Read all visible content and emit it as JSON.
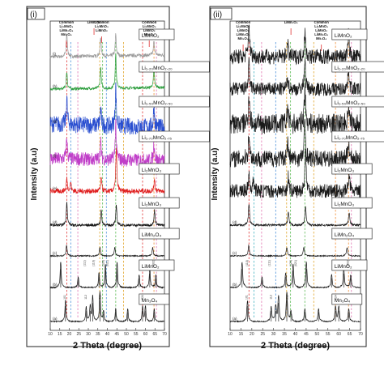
{
  "colors": {
    "black": "#1a1a1a",
    "gray": "#9a9a9a",
    "green": "#2e9e3e",
    "blue": "#2a4fd0",
    "magenta": "#c03ec8",
    "red": "#e02020",
    "guide_blue": "#4a90d9",
    "guide_green": "#55b84e",
    "guide_yellow": "#e0a020",
    "guide_orange": "#f08a30",
    "guide_pink": "#e070b0",
    "guide_red": "#e03030",
    "guide_cyan": "#40b0c0"
  },
  "chart_data": [
    {
      "type": "line",
      "panel_label": "(i)",
      "xlabel": "2 Theta (degree)",
      "ylabel": "Intensity (a.u)",
      "xlim": [
        10,
        70
      ],
      "x_ticks": [
        "10",
        "15",
        "20",
        "25",
        "30",
        "35",
        "40",
        "45",
        "50",
        "55",
        "60",
        "65",
        "70"
      ],
      "grid": false,
      "annotations": [
        {
          "text": [
            "Common",
            "Li₂MnO₃",
            "LiMn₂O₄",
            "Mn₃O₄"
          ],
          "x": 18.5
        },
        {
          "text": [
            "Common",
            "Li₂MnO₃",
            "LiMnO₂"
          ],
          "x": 37
        },
        {
          "text": [
            "LiMn₂O₄"
          ],
          "x": 33
        },
        {
          "text": [
            "Common",
            "Li₂MnO₃",
            "LiMnO₂",
            "Mn₃O₄"
          ],
          "x": 62
        }
      ],
      "series": [
        {
          "letter": "(i)",
          "label": "LiMnO₂",
          "color": "gray",
          "peaks": [
            [
              18.7,
              0.55
            ],
            [
              36.5,
              0.45
            ],
            [
              44.4,
              0.5
            ],
            [
              64.5,
              0.35
            ]
          ],
          "noise": 0.1,
          "slope": 0.05
        },
        {
          "letter": "(h)",
          "label": "Li₁.₂₀MnO₂.₂₀",
          "color": "green",
          "peaks": [
            [
              18.7,
              0.4
            ],
            [
              36.5,
              0.5
            ],
            [
              44.4,
              0.8
            ],
            [
              64.5,
              0.45
            ]
          ],
          "noise": 0.08,
          "slope": 0.05
        },
        {
          "letter": "(g)",
          "label": "Li₁.₅₀MnO₂.₅₀",
          "color": "blue",
          "peaks": [
            [
              18.7,
              0.6
            ],
            [
              36.5,
              0.4
            ],
            [
              44.4,
              0.95
            ],
            [
              64.5,
              0.5
            ]
          ],
          "noise": 0.5,
          "slope": -0.1
        },
        {
          "letter": "(f)",
          "label": "Li₁.₇₀MnO₂.₇₅",
          "color": "magenta",
          "peaks": [
            [
              18.7,
              0.5
            ],
            [
              36.5,
              0.4
            ],
            [
              44.4,
              0.9
            ],
            [
              64.5,
              0.4
            ]
          ],
          "noise": 0.4,
          "slope": -0.05
        },
        {
          "letter": "(e)",
          "label": "Li₂MnO₃",
          "color": "red",
          "peaks": [
            [
              18.7,
              0.3
            ],
            [
              20.8,
              0.2
            ],
            [
              36.8,
              0.3
            ],
            [
              44.7,
              1.0
            ],
            [
              64.8,
              0.3
            ]
          ],
          "noise": 0.15,
          "slope": 0.0
        },
        {
          "letter": "(d)",
          "label": "Li₂MnO₃",
          "color": "black",
          "peaks": [
            [
              18.7,
              0.55
            ],
            [
              36.8,
              0.35
            ],
            [
              44.7,
              0.45
            ],
            [
              64.8,
              0.35
            ]
          ],
          "noise": 0.08,
          "slope": 0.0
        },
        {
          "letter": "(c)",
          "label": "LiMn₂O₄",
          "color": "black",
          "peaks": [
            [
              18.6,
              0.25
            ],
            [
              36.1,
              0.2
            ],
            [
              43.9,
              0.2
            ],
            [
              63.8,
              0.2
            ]
          ],
          "noise": 0.03,
          "slope": 0.0
        },
        {
          "letter": "(b)",
          "label": "LiMnO₂",
          "color": "black",
          "peaks": [
            [
              15.5,
              0.6
            ],
            [
              24.7,
              0.25
            ],
            [
              35.6,
              0.35
            ],
            [
              39.0,
              0.55
            ],
            [
              45.1,
              0.6
            ],
            [
              56.7,
              0.3
            ],
            [
              62.3,
              0.45
            ],
            [
              65.5,
              0.3
            ]
          ],
          "noise": 0.03,
          "slope": 0.0
        },
        {
          "letter": "(a)",
          "label": "Mn₃O₄",
          "color": "black",
          "peaks": [
            [
              18.0,
              0.5
            ],
            [
              28.9,
              0.35
            ],
            [
              31.0,
              0.35
            ],
            [
              32.3,
              0.6
            ],
            [
              36.1,
              0.7
            ],
            [
              38.0,
              0.25
            ],
            [
              44.4,
              0.3
            ],
            [
              50.7,
              0.3
            ],
            [
              58.5,
              0.35
            ],
            [
              60.0,
              0.35
            ],
            [
              64.6,
              0.3
            ]
          ],
          "noise": 0.03,
          "slope": 0.0
        }
      ],
      "guides": [
        {
          "x": 18.7,
          "color": "guide_red"
        },
        {
          "x": 20.8,
          "color": "guide_blue"
        },
        {
          "x": 24.5,
          "color": "guide_pink"
        },
        {
          "x": 36.0,
          "color": "guide_yellow"
        },
        {
          "x": 37.5,
          "color": "guide_green"
        },
        {
          "x": 39.5,
          "color": "guide_blue"
        },
        {
          "x": 44.4,
          "color": "guide_green"
        },
        {
          "x": 48.5,
          "color": "guide_yellow"
        },
        {
          "x": 58.5,
          "color": "guide_red"
        },
        {
          "x": 64.5,
          "color": "guide_orange"
        },
        {
          "x": 65.8,
          "color": "guide_pink"
        }
      ],
      "peak_labels": [
        {
          "text": "(111)",
          "x": 28.5,
          "series": 7
        },
        {
          "text": "(110)",
          "x": 33.2,
          "series": 7
        },
        {
          "text": "(120)",
          "x": 38.3,
          "series": 7
        },
        {
          "text": "(021)",
          "x": 40.5,
          "series": 7
        },
        {
          "text": "(002)",
          "x": 64.6,
          "series": 7
        },
        {
          "text": "101",
          "x": 18.0,
          "series": 8
        },
        {
          "text": "112",
          "x": 29.2,
          "series": 8
        },
        {
          "text": "211",
          "x": 36.6,
          "series": 8
        },
        {
          "text": "224",
          "x": 59.0,
          "series": 8
        }
      ]
    },
    {
      "type": "line",
      "panel_label": "(ii)",
      "xlabel": "2 Theta (degree)",
      "ylabel": "Intensity (a.u)",
      "xlim": [
        10,
        70
      ],
      "x_ticks": [
        "10",
        "15",
        "20",
        "25",
        "30",
        "35",
        "40",
        "45",
        "50",
        "55",
        "60",
        "65",
        "70"
      ],
      "grid": false,
      "annotations": [
        {
          "text": [
            "Common",
            "Li₂MnO₃",
            "LiMnO₂",
            "LiMn₂O₄",
            "Mn₃O₄"
          ],
          "x": 16
        },
        {
          "text": [
            "LiMn₂O₄"
          ],
          "x": 38
        },
        {
          "text": [
            "Common",
            "Li₂MnO₃",
            "LiMnO₂",
            "LiMn₂O₄",
            "Mn₃O₄"
          ],
          "x": 52
        }
      ],
      "series": [
        {
          "letter": "(i)",
          "label": "LiMnO₂",
          "color": "black",
          "peaks": [
            [
              18.7,
              0.8
            ],
            [
              36.5,
              0.3
            ],
            [
              44.4,
              0.6
            ],
            [
              64.5,
              0.5
            ]
          ],
          "noise": 0.45,
          "slope": 0.0
        },
        {
          "letter": "(h)",
          "label": "Li₁.₂₀MnO₂.₂₀",
          "color": "black",
          "peaks": [
            [
              18.7,
              0.6
            ],
            [
              36.5,
              0.3
            ],
            [
              44.4,
              0.7
            ],
            [
              64.5,
              0.5
            ]
          ],
          "noise": 0.4,
          "slope": 0.0
        },
        {
          "letter": "(g)",
          "label": "Li₁.₅₀MnO₂.₅₀",
          "color": "black",
          "peaks": [
            [
              18.7,
              0.7
            ],
            [
              36.5,
              0.4
            ],
            [
              44.4,
              0.9
            ],
            [
              64.5,
              0.5
            ]
          ],
          "noise": 0.6,
          "slope": 0.0
        },
        {
          "letter": "(f)",
          "label": "Li₁.₇₀MnO₂.₇₅",
          "color": "black",
          "peaks": [
            [
              18.7,
              0.6
            ],
            [
              36.5,
              0.4
            ],
            [
              44.4,
              0.9
            ],
            [
              64.5,
              0.45
            ]
          ],
          "noise": 0.5,
          "slope": 0.0
        },
        {
          "letter": "(e)",
          "label": "Li₂MnO₃",
          "color": "black",
          "peaks": [
            [
              18.7,
              0.4
            ],
            [
              20.8,
              0.3
            ],
            [
              36.8,
              0.35
            ],
            [
              44.7,
              1.0
            ],
            [
              64.8,
              0.4
            ]
          ],
          "noise": 0.4,
          "slope": 0.0
        },
        {
          "letter": "(d)",
          "label": "Li₂MnO₃",
          "color": "black",
          "peaks": [
            [
              18.7,
              0.5
            ],
            [
              36.8,
              0.3
            ],
            [
              44.7,
              0.45
            ],
            [
              64.8,
              0.3
            ]
          ],
          "noise": 0.06,
          "slope": 0.0
        },
        {
          "letter": "(c)",
          "label": "LiMn₂O₄",
          "color": "black",
          "peaks": [
            [
              18.6,
              0.25
            ],
            [
              36.1,
              0.2
            ],
            [
              43.9,
              0.2
            ],
            [
              63.8,
              0.2
            ]
          ],
          "noise": 0.03,
          "slope": 0.0
        },
        {
          "letter": "(b)",
          "label": "LiMnO₂",
          "color": "black",
          "peaks": [
            [
              15.5,
              0.6
            ],
            [
              24.7,
              0.25
            ],
            [
              35.6,
              0.35
            ],
            [
              39.0,
              0.55
            ],
            [
              45.1,
              0.6
            ],
            [
              56.7,
              0.3
            ],
            [
              62.3,
              0.45
            ],
            [
              65.5,
              0.3
            ]
          ],
          "noise": 0.03,
          "slope": 0.0
        },
        {
          "letter": "(a)",
          "label": "Mn₃O₄",
          "color": "black",
          "peaks": [
            [
              18.0,
              0.5
            ],
            [
              28.9,
              0.35
            ],
            [
              31.0,
              0.35
            ],
            [
              32.3,
              0.6
            ],
            [
              36.1,
              0.7
            ],
            [
              38.0,
              0.25
            ],
            [
              44.4,
              0.3
            ],
            [
              50.7,
              0.3
            ],
            [
              58.5,
              0.35
            ],
            [
              60.0,
              0.35
            ],
            [
              64.6,
              0.3
            ]
          ],
          "noise": 0.03,
          "slope": 0.0
        }
      ],
      "guides": [
        {
          "x": 18.7,
          "color": "guide_red"
        },
        {
          "x": 21.0,
          "color": "guide_cyan"
        },
        {
          "x": 24.5,
          "color": "guide_pink"
        },
        {
          "x": 31.0,
          "color": "guide_blue"
        },
        {
          "x": 36.0,
          "color": "guide_yellow"
        },
        {
          "x": 37.8,
          "color": "guide_green"
        },
        {
          "x": 44.4,
          "color": "guide_green"
        },
        {
          "x": 48.5,
          "color": "guide_yellow"
        },
        {
          "x": 58.5,
          "color": "guide_orange"
        },
        {
          "x": 64.5,
          "color": "guide_orange"
        },
        {
          "x": 65.8,
          "color": "guide_pink"
        }
      ],
      "peak_labels": [
        {
          "text": "(110)",
          "x": 18.2,
          "series": 7
        },
        {
          "text": "(111)",
          "x": 28.5,
          "series": 7
        },
        {
          "text": "(120)",
          "x": 38.3,
          "series": 7
        },
        {
          "text": "(021)",
          "x": 40.5,
          "series": 7
        },
        {
          "text": "(002)",
          "x": 64.6,
          "series": 7
        },
        {
          "text": "101",
          "x": 18.0,
          "series": 8
        },
        {
          "text": "112",
          "x": 29.2,
          "series": 8
        },
        {
          "text": "211",
          "x": 36.6,
          "series": 8
        },
        {
          "text": "224",
          "x": 59.0,
          "series": 8
        }
      ]
    }
  ]
}
